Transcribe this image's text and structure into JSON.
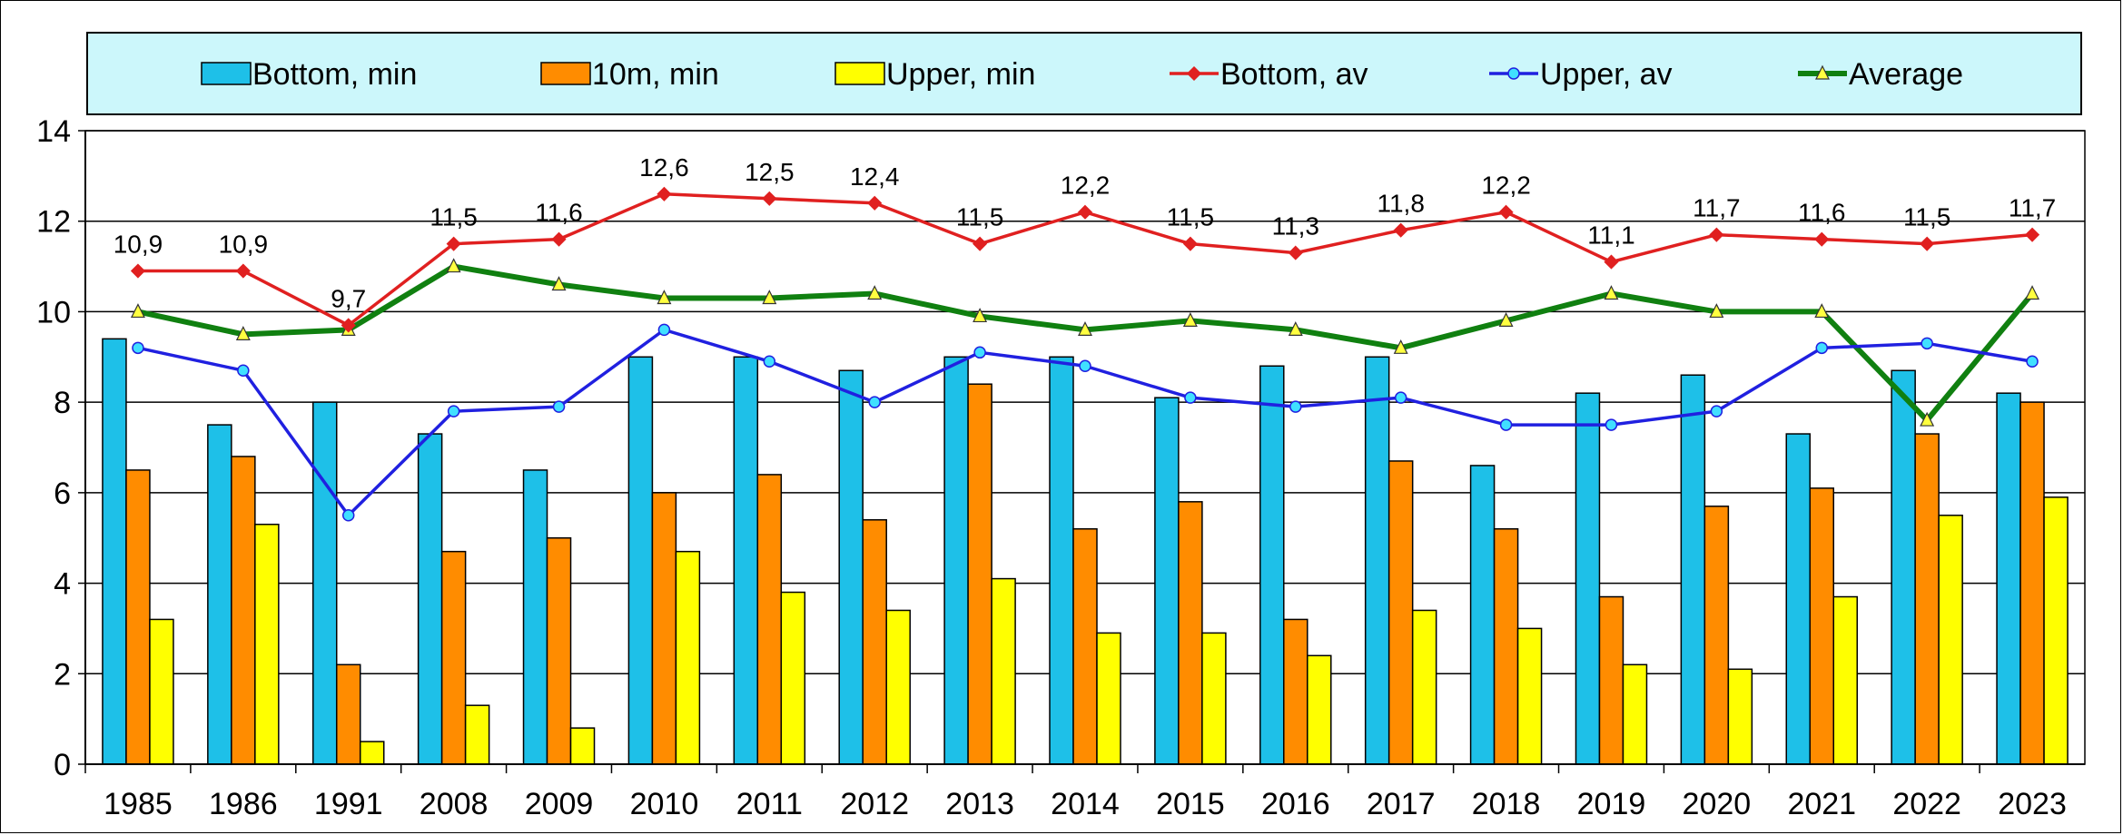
{
  "chart_data": {
    "type": "bar",
    "categories": [
      "1985",
      "1986",
      "1991",
      "2008",
      "2009",
      "2010",
      "2011",
      "2012",
      "2013",
      "2014",
      "2015",
      "2016",
      "2017",
      "2018",
      "2019",
      "2020",
      "2021",
      "2022",
      "2023"
    ],
    "ylim": [
      0,
      14
    ],
    "yticks": [
      0,
      2,
      4,
      6,
      8,
      10,
      12,
      14
    ],
    "grid": true,
    "legend_position": "top",
    "bar_series": [
      {
        "name": "Bottom, min",
        "color": "#1ec0e8",
        "values": [
          9.4,
          7.5,
          8.0,
          7.3,
          6.5,
          9.0,
          9.0,
          8.7,
          9.0,
          9.0,
          8.1,
          8.8,
          9.0,
          6.6,
          8.2,
          8.6,
          7.3,
          8.7,
          8.2
        ]
      },
      {
        "name": "10m, min",
        "color": "#ff8c00",
        "values": [
          6.5,
          6.8,
          2.2,
          4.7,
          5.0,
          6.0,
          6.4,
          5.4,
          8.4,
          5.2,
          5.8,
          3.2,
          6.7,
          5.2,
          3.7,
          5.7,
          6.1,
          7.3,
          8.0
        ]
      },
      {
        "name": "Upper, min",
        "color": "#ffff00",
        "values": [
          3.2,
          5.3,
          0.5,
          1.3,
          0.8,
          4.7,
          3.8,
          3.4,
          4.1,
          2.9,
          2.9,
          2.4,
          3.4,
          3.0,
          2.2,
          2.1,
          3.7,
          5.5,
          5.9
        ]
      }
    ],
    "line_series": [
      {
        "name": "Bottom, av",
        "color": "#e02020",
        "marker": "diamond",
        "marker_fill": "#e02020",
        "values": [
          10.9,
          10.9,
          9.7,
          11.5,
          11.6,
          12.6,
          12.5,
          12.4,
          11.5,
          12.2,
          11.5,
          11.3,
          11.8,
          12.2,
          11.1,
          11.7,
          11.6,
          11.5,
          11.7
        ],
        "labels": [
          "10,9",
          "10,9",
          "9,7",
          "11,5",
          "11,6",
          "12,6",
          "12,5",
          "12,4",
          "11,5",
          "12,2",
          "11,5",
          "11,3",
          "11,8",
          "12,2",
          "11,1",
          "11,7",
          "11,6",
          "11,5",
          "11,7"
        ]
      },
      {
        "name": "Upper, av",
        "color": "#2020e0",
        "marker": "circle",
        "marker_fill": "#40e0ff",
        "values": [
          9.2,
          8.7,
          5.5,
          7.8,
          7.9,
          9.6,
          8.9,
          8.0,
          9.1,
          8.8,
          8.1,
          7.9,
          8.1,
          7.5,
          7.5,
          7.8,
          9.2,
          9.3,
          8.9
        ]
      },
      {
        "name": "Average",
        "color": "#108010",
        "marker": "triangle",
        "marker_fill": "#ffff40",
        "values": [
          10.0,
          9.5,
          9.6,
          11.0,
          10.6,
          10.3,
          10.3,
          10.4,
          9.9,
          9.6,
          9.8,
          9.6,
          9.2,
          9.8,
          10.4,
          10.0,
          10.0,
          7.6,
          10.4
        ]
      }
    ],
    "legend_order": [
      "Bottom, min",
      "10m, min",
      "Upper, min",
      "Bottom, av",
      "Upper, av",
      "Average"
    ]
  }
}
